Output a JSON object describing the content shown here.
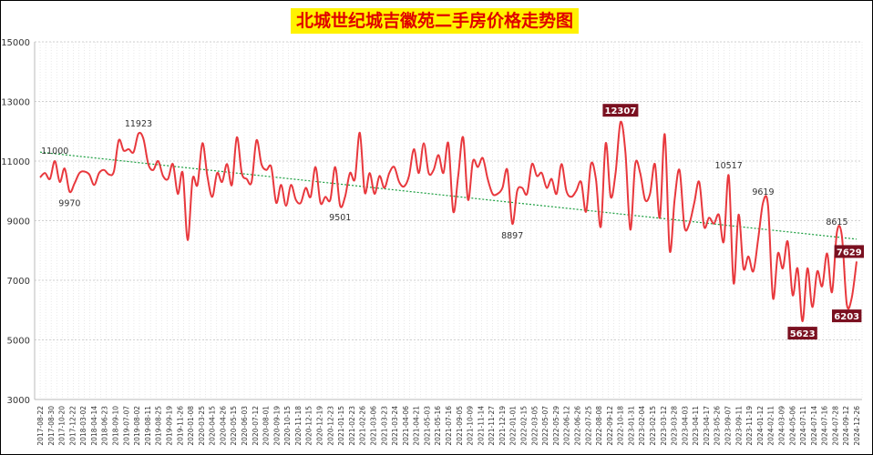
{
  "chart_data": {
    "type": "line",
    "title": "北城世纪城吉徽苑二手房价格走势图",
    "xlabel": "",
    "ylabel": "",
    "ylim": [
      3000,
      15000
    ],
    "yticks": [
      "15000",
      "13000",
      "11000",
      "9000",
      "7000",
      "5000",
      "3000"
    ],
    "grid": true,
    "colors": {
      "series": "#e8383d",
      "trend": "#1a9e3f",
      "badge": "#7a1020",
      "title_bg": "#fff200",
      "title_fg": "#e00000"
    },
    "x_ticks": [
      "2017-08-22",
      "2017-08-30",
      "2017-10-20",
      "2017-12-22",
      "2018-03-02",
      "2018-04-14",
      "2018-06-23",
      "2018-09-10",
      "2019-07-07",
      "2019-08-02",
      "2019-08-11",
      "2019-08-25",
      "2019-09-19",
      "2019-11-26",
      "2020-01-08",
      "2020-03-25",
      "2020-04-15",
      "2020-04-26",
      "2020-05-15",
      "2020-06-03",
      "2020-07-12",
      "2020-08-01",
      "2020-09-19",
      "2020-10-15",
      "2020-11-18",
      "2020-12-15",
      "2020-12-19",
      "2020-12-23",
      "2021-01-15",
      "2021-02-23",
      "2021-02-26",
      "2021-03-06",
      "2021-03-23",
      "2021-03-24",
      "2021-04-06",
      "2021-04-21",
      "2021-05-03",
      "2021-05-16",
      "2021-07-16",
      "2021-09-05",
      "2021-10-09",
      "2021-11-14",
      "2021-11-27",
      "2021-12-19",
      "2022-01-01",
      "2022-02-15",
      "2022-03-05",
      "2022-05-07",
      "2022-05-29",
      "2022-06-12",
      "2022-06-26",
      "2022-07-25",
      "2022-08-08",
      "2022-09-12",
      "2022-10-18",
      "2023-01-31",
      "2023-02-04",
      "2023-02-15",
      "2023-03-12",
      "2023-03-28",
      "2023-04-03",
      "2023-04-11",
      "2023-04-17",
      "2023-05-26",
      "2023-09-07",
      "2023-09-11",
      "2023-11-19",
      "2024-01-12",
      "2024-02-11",
      "2024-03-09",
      "2024-05-06",
      "2024-07-11",
      "2024-07-14",
      "2024-07-16",
      "2024-07-28",
      "2024-09-12",
      "2024-12-26"
    ],
    "series": [
      {
        "values": [
          10450,
          10600,
          10400,
          11000,
          10300,
          10750,
          9970,
          10250,
          10600,
          10650,
          10550,
          10200,
          10600,
          10700,
          10550,
          10650,
          11700,
          11350,
          11400,
          11300,
          11923,
          11750,
          10900,
          10700,
          11000,
          10500,
          10400,
          10900,
          9900,
          10600,
          8350,
          10400,
          10200,
          11600,
          10500,
          9800,
          10600,
          10300,
          10900,
          10200,
          11800,
          10600,
          10400,
          10300,
          11700,
          10900,
          10700,
          10800,
          9600,
          10200,
          9500,
          10200,
          9700,
          9600,
          10100,
          9800,
          10800,
          9600,
          9800,
          9700,
          10800,
          9501,
          9800,
          10600,
          10400,
          11950,
          9950,
          10600,
          9900,
          10500,
          10100,
          10600,
          10800,
          10300,
          10150,
          10500,
          11400,
          10600,
          11600,
          10600,
          10700,
          11200,
          10600,
          11600,
          9300,
          10500,
          11800,
          9700,
          11000,
          10800,
          11100,
          10400,
          9900,
          9900,
          10100,
          10700,
          8897,
          10000,
          10100,
          9900,
          10900,
          10500,
          10600,
          10100,
          10400,
          9900,
          10900,
          10000,
          9800,
          10000,
          10300,
          9300,
          10900,
          10400,
          8800,
          11600,
          9800,
          10600,
          12307,
          11300,
          8700,
          10900,
          10600,
          9700,
          9900,
          10900,
          9100,
          11900,
          8000,
          9700,
          10700,
          8800,
          8900,
          9600,
          10300,
          8800,
          9100,
          8900,
          9200,
          8300,
          10517,
          6900,
          9200,
          7400,
          7800,
          7300,
          8400,
          9619,
          9500,
          6400,
          7900,
          7400,
          8300,
          6500,
          7400,
          5623,
          7400,
          6100,
          7300,
          6800,
          7900,
          6600,
          8615,
          8500,
          6203,
          6400,
          7629
        ]
      }
    ],
    "trend": {
      "start": 11300,
      "end": 8380
    },
    "annotations": [
      {
        "text": "11000",
        "index": 3,
        "value": 11000,
        "style": "plain",
        "pos": "above"
      },
      {
        "text": "9970",
        "index": 6,
        "value": 9970,
        "style": "plain",
        "pos": "below"
      },
      {
        "text": "11923",
        "index": 20,
        "value": 11923,
        "style": "plain",
        "pos": "above"
      },
      {
        "text": "9501",
        "index": 61,
        "value": 9501,
        "style": "plain",
        "pos": "below"
      },
      {
        "text": "8897",
        "index": 96,
        "value": 8897,
        "style": "plain",
        "pos": "below"
      },
      {
        "text": "12307",
        "index": 118,
        "value": 12307,
        "style": "badge",
        "pos": "above"
      },
      {
        "text": "10517",
        "index": 140,
        "value": 10517,
        "style": "plain",
        "pos": "above"
      },
      {
        "text": "9619",
        "index": 147,
        "value": 9619,
        "style": "plain",
        "pos": "above"
      },
      {
        "text": "5623",
        "index": 155,
        "value": 5623,
        "style": "badge",
        "pos": "below"
      },
      {
        "text": "8615",
        "index": 162,
        "value": 8615,
        "style": "plain",
        "pos": "above"
      },
      {
        "text": "6203",
        "index": 164,
        "value": 6203,
        "style": "badge",
        "pos": "below"
      },
      {
        "text": "7629",
        "index": 166,
        "value": 7629,
        "style": "badge",
        "pos": "right"
      }
    ]
  }
}
